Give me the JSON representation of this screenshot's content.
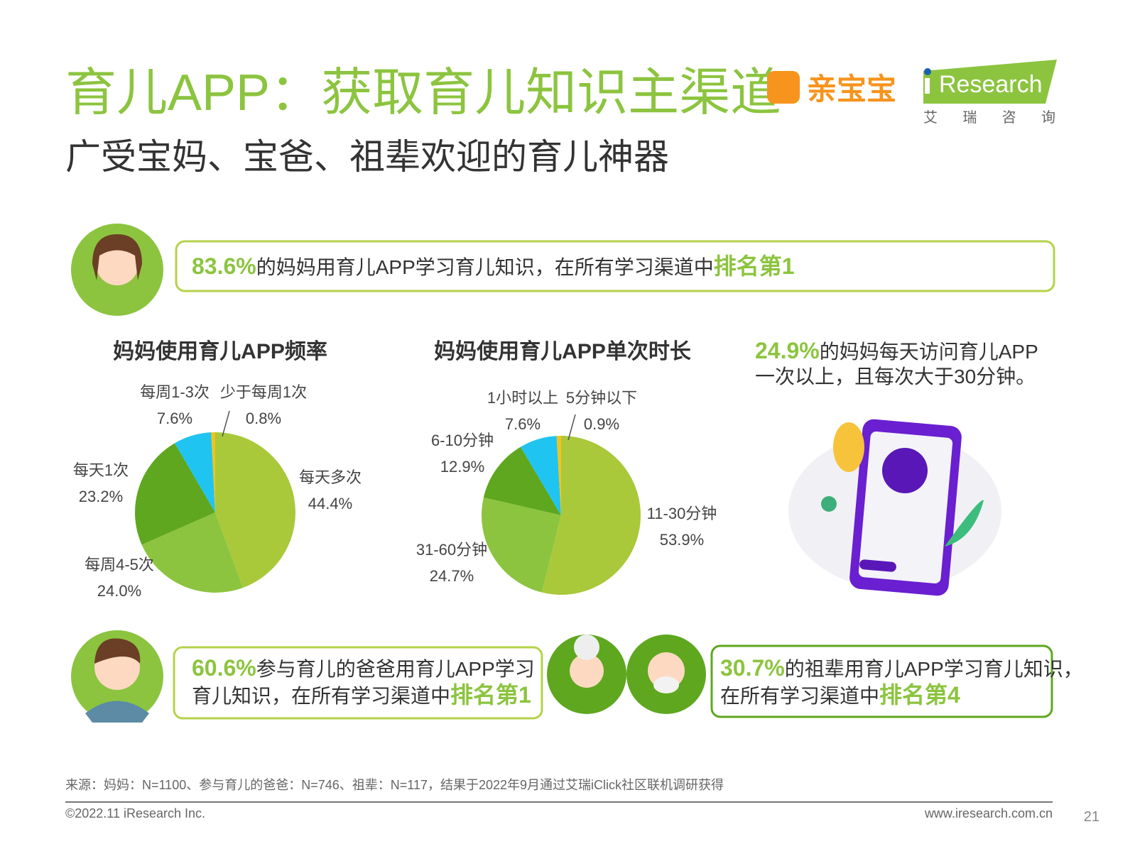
{
  "header": {
    "title": "育儿APP：获取育儿知识主渠道",
    "subtitle": "广受宝妈、宝爸、祖辈欢迎的育儿神器",
    "brand": "亲宝宝",
    "logo": "Research",
    "logo_sub": "艾 瑞 咨 询"
  },
  "callouts": {
    "mom": {
      "highlight": "83.6%",
      "text": "的妈妈用育儿APP学习育儿知识，在所有学习渠道中",
      "rank": "排名第1"
    },
    "daily": {
      "highlight": "24.9%",
      "line1": "的妈妈每天访问育儿APP",
      "line2": "一次以上，且每次大于30分钟。"
    },
    "dad": {
      "highlight": "60.6%",
      "line1": "参与育儿的爸爸用育儿APP学习",
      "line2": "育儿知识，在所有学习渠道中",
      "rank": "排名第1"
    },
    "elder": {
      "highlight": "30.7%",
      "line1": "的祖辈用育儿APP学习育儿知识，",
      "line2": "在所有学习渠道中",
      "rank": "排名第4"
    }
  },
  "chart_data": [
    {
      "type": "pie",
      "title": "妈妈使用育儿APP频率",
      "categories": [
        "每天多次",
        "每周4-5次",
        "每天1次",
        "每周1-3次",
        "少于每周1次"
      ],
      "values": [
        44.4,
        24.0,
        23.2,
        7.6,
        0.8
      ],
      "value_labels": [
        "44.4%",
        "24.0%",
        "23.2%",
        "7.6%",
        "0.8%"
      ],
      "colors": [
        "#a9c93a",
        "#8cc43f",
        "#5ea71f",
        "#20c4f0",
        "#f4c31a"
      ]
    },
    {
      "type": "pie",
      "title": "妈妈使用育儿APP单次时长",
      "categories": [
        "11-30分钟",
        "31-60分钟",
        "6-10分钟",
        "1小时以上",
        "5分钟以下"
      ],
      "values": [
        53.9,
        24.7,
        12.9,
        7.6,
        0.9
      ],
      "value_labels": [
        "53.9%",
        "24.7%",
        "12.9%",
        "7.6%",
        "0.9%"
      ],
      "colors": [
        "#a9c93a",
        "#8cc43f",
        "#5ea71f",
        "#20c4f0",
        "#f4c31a"
      ]
    }
  ],
  "footer": {
    "source": "来源：妈妈：N=1100、参与育儿的爸爸：N=746、祖辈：N=117，结果于2022年9月通过艾瑞iClick社区联机调研获得",
    "copyright": "©2022.11 iResearch Inc.",
    "website": "www.iresearch.com.cn",
    "page": "21"
  }
}
